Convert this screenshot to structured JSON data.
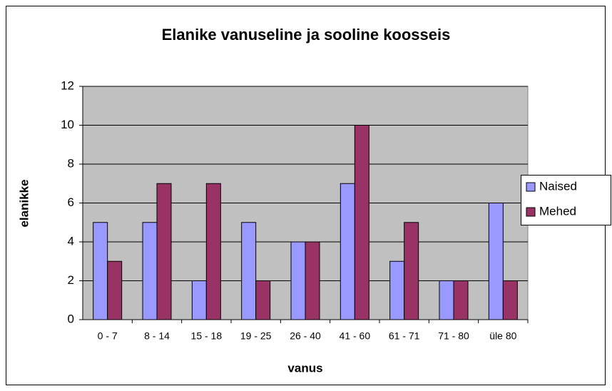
{
  "chart_data": {
    "type": "bar",
    "title": "Elanike vanuseline ja sooline koosseis",
    "x_label": "vanus",
    "y_label": "elanikke",
    "categories": [
      "0 - 7",
      "8 - 14",
      "15 - 18",
      "19 - 25",
      "26 - 40",
      "41 - 60",
      "61 - 71",
      "71 - 80",
      "üle 80"
    ],
    "series": [
      {
        "name": "Naised",
        "color": "#9999ff",
        "values": [
          5,
          5,
          2,
          5,
          4,
          7,
          3,
          2,
          6
        ]
      },
      {
        "name": "Mehed",
        "color": "#993366",
        "values": [
          3,
          7,
          7,
          2,
          4,
          10,
          5,
          2,
          2
        ]
      }
    ],
    "ylim": [
      0,
      12
    ],
    "yticks": [
      0,
      2,
      4,
      6,
      8,
      10,
      12
    ],
    "grid": true,
    "legend": "right"
  }
}
